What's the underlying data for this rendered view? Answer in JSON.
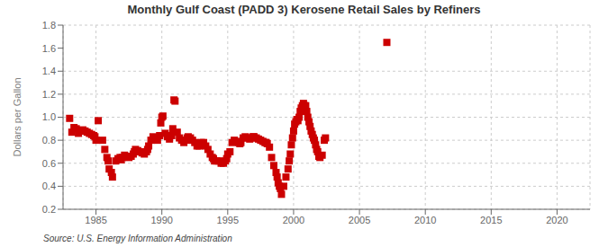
{
  "chart_data": {
    "type": "scatter",
    "title": "Monthly Gulf Coast (PADD 3) Kerosene Retail Sales by Refiners",
    "ylabel": "Dollars per Gallon",
    "annotations": [
      "Source: U.S. Energy Information Administration"
    ],
    "color": "#cc0000",
    "marker": "square",
    "grid": true,
    "xlim": [
      1982.5,
      2022.5
    ],
    "xticks": [
      1985,
      1990,
      1995,
      2000,
      2005,
      2010,
      2015,
      2020
    ],
    "ylim": [
      0.2,
      1.8
    ],
    "yticks": [
      0.2,
      0.4,
      0.6,
      0.8,
      {
        "value": 1.0,
        "label": "1.0"
      },
      1.2,
      1.4,
      1.6,
      1.8
    ],
    "x": [
      1983.0,
      1983.17,
      1983.33,
      1983.5,
      1983.67,
      1983.83,
      1984.0,
      1984.17,
      1984.33,
      1984.5,
      1984.67,
      1984.83,
      1984.92,
      1985.0,
      1985.17,
      1985.5,
      1985.67,
      1985.83,
      1985.92,
      1986.0,
      1986.17,
      1986.25,
      1986.5,
      1986.67,
      1986.83,
      1986.92,
      1987.0,
      1987.17,
      1987.33,
      1987.5,
      1987.67,
      1987.83,
      1987.92,
      1988.0,
      1988.17,
      1988.33,
      1988.5,
      1988.67,
      1988.83,
      1988.92,
      1989.0,
      1989.17,
      1989.33,
      1989.5,
      1989.67,
      1989.83,
      1989.92,
      1990.0,
      1990.08,
      1990.25,
      1990.42,
      1990.58,
      1990.75,
      1990.83,
      1990.92,
      1991.0,
      1991.17,
      1991.33,
      1991.5,
      1991.67,
      1991.83,
      1991.92,
      1992.0,
      1992.17,
      1992.33,
      1992.5,
      1992.67,
      1992.83,
      1992.92,
      1993.0,
      1993.17,
      1993.33,
      1993.5,
      1993.67,
      1993.83,
      1993.92,
      1994.0,
      1994.17,
      1994.33,
      1994.5,
      1994.67,
      1994.83,
      1994.92,
      1995.0,
      1995.17,
      1995.33,
      1995.5,
      1995.67,
      1995.83,
      1995.92,
      1996.0,
      1996.17,
      1996.33,
      1996.5,
      1996.67,
      1996.83,
      1996.92,
      1997.0,
      1997.17,
      1997.33,
      1997.5,
      1997.67,
      1997.83,
      1997.92,
      1998.0,
      1998.17,
      1998.33,
      1998.5,
      1998.67,
      1998.75,
      1998.83,
      1998.92,
      1999.0,
      1999.08,
      1999.25,
      1999.42,
      1999.58,
      1999.67,
      1999.75,
      1999.83,
      1999.92,
      2000.0,
      2000.08,
      2000.17,
      2000.25,
      2000.33,
      2000.42,
      2000.5,
      2000.58,
      2000.67,
      2000.75,
      2000.83,
      2000.92,
      2001.0,
      2001.08,
      2001.17,
      2001.25,
      2001.33,
      2001.42,
      2001.5,
      2001.58,
      2001.67,
      2001.75,
      2001.83,
      2001.92,
      2002.0,
      2002.17,
      2002.33,
      2002.42,
      2007.08
    ],
    "values": [
      0.99,
      0.87,
      0.91,
      0.9,
      0.86,
      0.88,
      0.89,
      0.88,
      0.87,
      0.86,
      0.85,
      0.84,
      0.83,
      0.8,
      0.97,
      0.8,
      0.72,
      0.65,
      0.62,
      0.55,
      0.52,
      0.48,
      0.62,
      0.64,
      0.65,
      0.63,
      0.65,
      0.67,
      0.66,
      0.65,
      0.66,
      0.68,
      0.7,
      0.72,
      0.71,
      0.7,
      0.69,
      0.68,
      0.7,
      0.72,
      0.75,
      0.8,
      0.83,
      0.82,
      0.8,
      0.84,
      0.95,
      1.0,
      1.01,
      0.86,
      0.83,
      0.81,
      0.84,
      0.9,
      1.15,
      1.14,
      0.87,
      0.82,
      0.8,
      0.78,
      0.8,
      0.82,
      0.83,
      0.82,
      0.8,
      0.78,
      0.75,
      0.75,
      0.76,
      0.78,
      0.78,
      0.75,
      0.72,
      0.68,
      0.65,
      0.64,
      0.62,
      0.62,
      0.62,
      0.6,
      0.6,
      0.62,
      0.64,
      0.68,
      0.7,
      0.78,
      0.8,
      0.79,
      0.78,
      0.77,
      0.78,
      0.82,
      0.83,
      0.82,
      0.81,
      0.82,
      0.83,
      0.83,
      0.82,
      0.81,
      0.8,
      0.79,
      0.78,
      0.78,
      0.77,
      0.74,
      0.65,
      0.58,
      0.52,
      0.48,
      0.43,
      0.4,
      0.38,
      0.33,
      0.4,
      0.48,
      0.55,
      0.62,
      0.68,
      0.76,
      0.82,
      0.88,
      0.94,
      0.96,
      0.98,
      0.97,
      1.0,
      1.05,
      1.08,
      1.1,
      1.12,
      1.1,
      1.1,
      1.05,
      1.0,
      0.96,
      0.92,
      0.88,
      0.85,
      0.82,
      0.8,
      0.76,
      0.72,
      0.7,
      0.66,
      0.65,
      0.67,
      0.8,
      0.82,
      1.65
    ]
  }
}
